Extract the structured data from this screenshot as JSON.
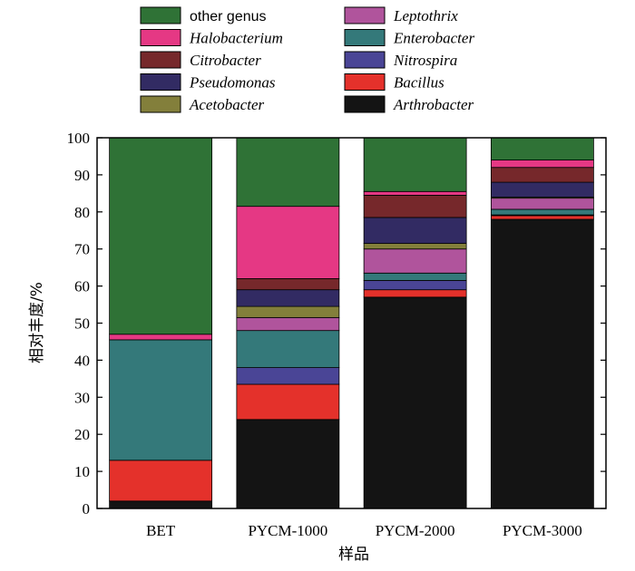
{
  "chart_data": {
    "type": "bar",
    "stacked": true,
    "xlabel": "样品",
    "ylabel": "相对丰度/%",
    "ylim": [
      0,
      100
    ],
    "yticks": [
      0,
      10,
      20,
      30,
      40,
      50,
      60,
      70,
      80,
      90,
      100
    ],
    "categories": [
      "BET",
      "PYCM-1000",
      "PYCM-2000",
      "PYCM-3000"
    ],
    "legend": {
      "placement": "top",
      "columns": 2,
      "order": [
        "other genus",
        "Leptothrix",
        "Halobacterium",
        "Enterobacter",
        "Citrobacter",
        "Nitrospira",
        "Pseudomonas",
        "Bacillus",
        "Acetobacter",
        "Arthrobacter"
      ]
    },
    "series": [
      {
        "name": "Arthrobacter",
        "color": "#141414",
        "values": [
          2.0,
          24.0,
          57.0,
          78.0
        ]
      },
      {
        "name": "Bacillus",
        "color": "#e4312b",
        "values": [
          11.0,
          9.5,
          2.0,
          1.0
        ]
      },
      {
        "name": "Nitrospira",
        "color": "#4a4596",
        "values": [
          0.0,
          4.5,
          2.5,
          0.2
        ]
      },
      {
        "name": "Enterobacter",
        "color": "#34797a",
        "values": [
          32.5,
          10.0,
          2.0,
          1.5
        ]
      },
      {
        "name": "Leptothrix",
        "color": "#b0549c",
        "values": [
          0.0,
          3.5,
          6.5,
          3.0
        ]
      },
      {
        "name": "Acetobacter",
        "color": "#837f3b",
        "values": [
          0.0,
          3.0,
          1.5,
          0.3
        ]
      },
      {
        "name": "Pseudomonas",
        "color": "#322b63",
        "values": [
          0.0,
          4.5,
          7.0,
          4.0
        ]
      },
      {
        "name": "Citrobacter",
        "color": "#76282b",
        "values": [
          0.0,
          3.0,
          6.0,
          4.0
        ]
      },
      {
        "name": "Halobacterium",
        "color": "#e53884",
        "values": [
          1.5,
          19.5,
          1.0,
          2.0
        ]
      },
      {
        "name": "other genus",
        "color": "#2f7236",
        "values": [
          53.0,
          18.5,
          14.5,
          6.0
        ]
      }
    ]
  }
}
